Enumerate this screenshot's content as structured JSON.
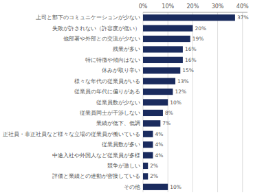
{
  "chart_data": {
    "type": "bar",
    "orientation": "horizontal",
    "categories": [
      "上司と部下のコミュニケーションが少ない",
      "失敗が許されない（許容度が低い）",
      "他部署や外部との交流が少ない",
      "残業が多い",
      "特に特徴や傾向はない",
      "休みが取り辛い",
      "様々な年代の従業員がいる",
      "従業員の年代に偏りがある",
      "従業員数が少ない",
      "従業員同士が干渉しない",
      "業績が低下、低調",
      "正社員・非正社員など様々な立場の従業員が働いている",
      "従業員数が多い",
      "中途入社や外国人など従業員が多様",
      "競争が激しい",
      "評価と業績との連動が密接している",
      "その他"
    ],
    "values": [
      37,
      20,
      19,
      16,
      16,
      15,
      13,
      12,
      10,
      8,
      7,
      4,
      4,
      4,
      2,
      2,
      10
    ],
    "value_labels": [
      "37%",
      "20%",
      "19%",
      "16%",
      "16%",
      "15%",
      "13%",
      "12%",
      "10%",
      "8%",
      "7%",
      "4%",
      "4%",
      "4%",
      "2%",
      "2%",
      "10%"
    ],
    "data_labels": true,
    "color": "#1a2b5e",
    "xlim": [
      0,
      42
    ],
    "xticks": [
      {
        "value": 0,
        "label": "0%"
      },
      {
        "value": 10,
        "label": "10%"
      },
      {
        "value": 20,
        "label": "20%"
      },
      {
        "value": 30,
        "label": "30%"
      },
      {
        "value": 40,
        "label": "40%"
      }
    ],
    "grid": true
  }
}
